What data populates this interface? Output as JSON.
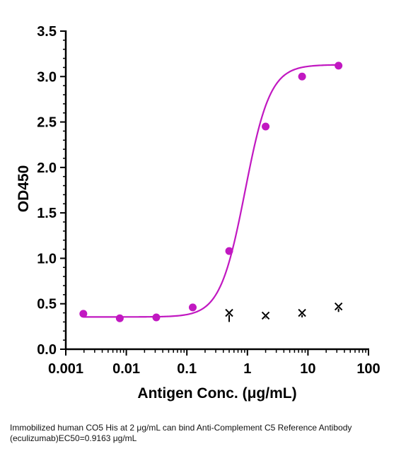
{
  "chart_data": {
    "type": "scatter",
    "xscale": "log",
    "xlabel": "Antigen Conc. (μg/mL)",
    "ylabel": "OD450",
    "xlim": [
      0.001,
      100
    ],
    "ylim": [
      0,
      3.5
    ],
    "xticks": [
      0.001,
      0.01,
      0.1,
      1,
      10,
      100
    ],
    "xtick_labels": [
      "0.001",
      "0.01",
      "0.1",
      "1",
      "10",
      "100"
    ],
    "yticks": [
      0,
      0.5,
      1,
      1.5,
      2,
      2.5,
      3,
      3.5
    ],
    "ytick_labels": [
      "0.0",
      "0.5",
      "1.0",
      "1.5",
      "2.0",
      "2.5",
      "3.0",
      "3.5"
    ],
    "series": [
      {
        "marker": "circle",
        "color": "#c118c1",
        "fit": "4PL",
        "fit_params": {
          "bottom": 0.355,
          "top": 3.13,
          "ec50": 0.9163,
          "hill": 2.1
        },
        "x": [
          0.00195,
          0.0078,
          0.03125,
          0.125,
          0.5,
          2,
          8,
          32
        ],
        "y": [
          0.39,
          0.34,
          0.35,
          0.46,
          1.08,
          2.45,
          3.0,
          3.12
        ]
      },
      {
        "marker": "x",
        "color": "#000000",
        "x": [
          0.5,
          2,
          8,
          32
        ],
        "y": [
          0.4,
          0.37,
          0.4,
          0.47
        ],
        "err": [
          0.1,
          0.03,
          0.05,
          0.06
        ]
      }
    ],
    "grid": false,
    "legend": "none"
  },
  "caption": "Immobilized human CO5 His at 2  μg/mL can bind  Anti-Complement C5 Reference Antibody (eculizumab)EC50=0.9163 μg/mL"
}
